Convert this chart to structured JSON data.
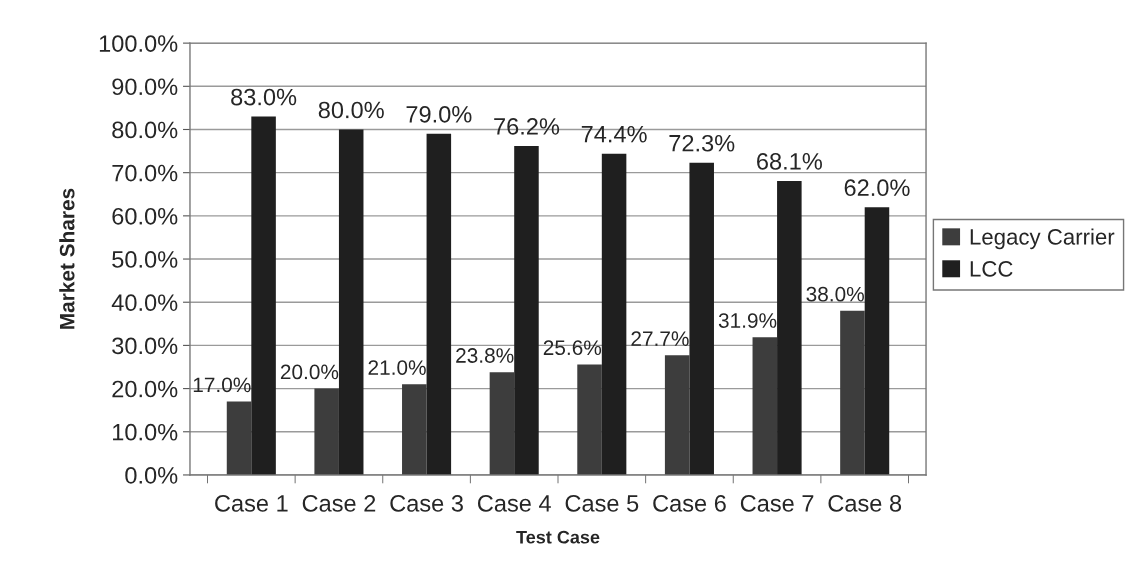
{
  "chart_data": {
    "type": "bar",
    "xlabel": "Test Case",
    "ylabel": "Market Shares",
    "categories": [
      "Case 1",
      "Case 2",
      "Case 3",
      "Case 4",
      "Case 5",
      "Case 6",
      "Case 7",
      "Case 8"
    ],
    "series": [
      {
        "name": "Legacy Carrier",
        "color": "#3d3d3d",
        "values": [
          17.0,
          20.0,
          21.0,
          23.8,
          25.6,
          27.7,
          31.9,
          38.0
        ],
        "value_labels": [
          "17.0%",
          "20.0%",
          "21.0%",
          "23.8%",
          "25.6%",
          "27.7%",
          "31.9%",
          "38.0%"
        ]
      },
      {
        "name": "LCC",
        "color": "#1f1f1f",
        "values": [
          83.0,
          80.0,
          79.0,
          76.2,
          74.4,
          72.3,
          68.1,
          62.0
        ],
        "value_labels": [
          "83.0%",
          "80.0%",
          "79.0%",
          "76.2%",
          "74.4%",
          "72.3%",
          "68.1%",
          "62.0%"
        ]
      }
    ],
    "ylim": [
      0,
      100
    ],
    "yticks": [
      {
        "value": 0,
        "label": "0.0%"
      },
      {
        "value": 10,
        "label": "10.0%"
      },
      {
        "value": 20,
        "label": "20.0%"
      },
      {
        "value": 30,
        "label": "30.0%"
      },
      {
        "value": 40,
        "label": "40.0%"
      },
      {
        "value": 50,
        "label": "50.0%"
      },
      {
        "value": 60,
        "label": "60.0%"
      },
      {
        "value": 70,
        "label": "70.0%"
      },
      {
        "value": 80,
        "label": "80.0%"
      },
      {
        "value": 90,
        "label": "90.0%"
      },
      {
        "value": 100,
        "label": "100.0%"
      }
    ],
    "grid": "y",
    "legend": "right"
  }
}
